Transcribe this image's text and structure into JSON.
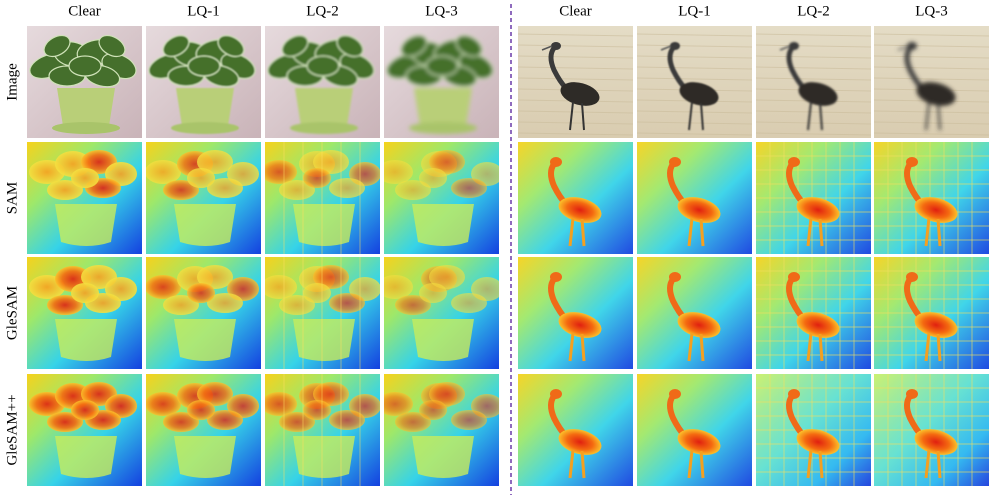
{
  "left_columns": [
    "Clear",
    "LQ-1",
    "LQ-2",
    "LQ-3"
  ],
  "right_columns": [
    "Clear",
    "LQ-1",
    "LQ-2",
    "LQ-3"
  ],
  "rows": [
    "Image",
    "SAM",
    "GleSAM",
    "GleSAM++"
  ]
}
